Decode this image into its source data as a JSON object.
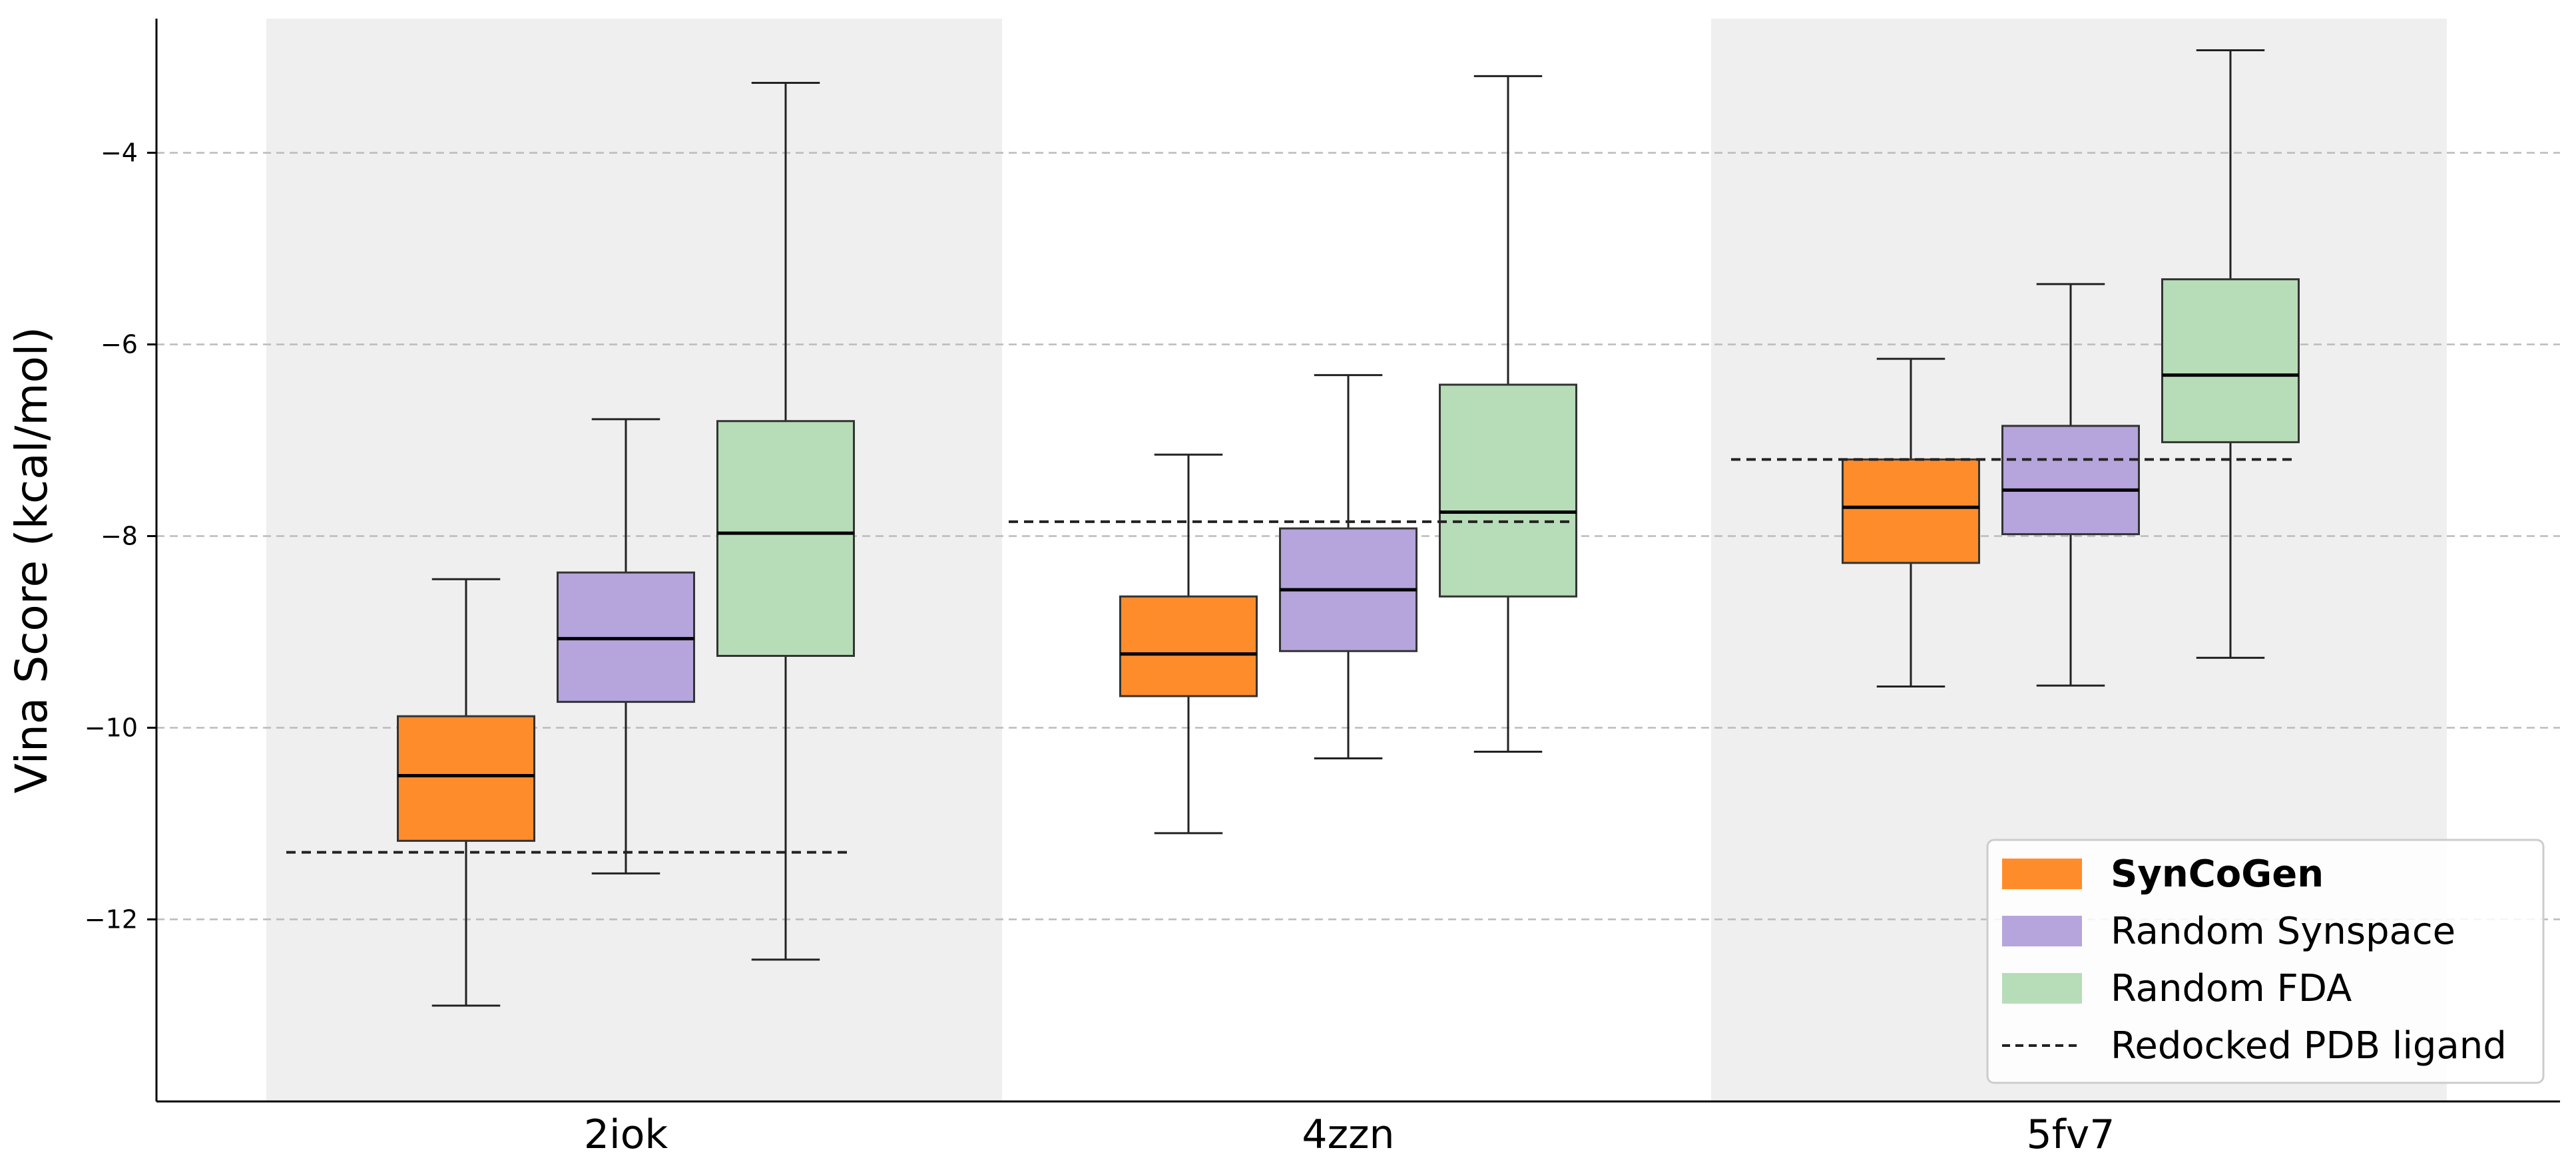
{
  "chart_data": {
    "type": "box",
    "title": "",
    "xlabel": "",
    "ylabel": "Vina Score (kcal/mol)",
    "ylim": [
      -13.9,
      -2.6
    ],
    "yticks": [
      -12,
      -10,
      -8,
      -6,
      -4
    ],
    "ytick_labels": [
      "−12",
      "−10",
      "−8",
      "−6",
      "−4"
    ],
    "grid": "horizontal dashed",
    "shaded_groups": [
      "2iok",
      "5fv7"
    ],
    "legend_position": "bottom-right",
    "categories": [
      "2iok",
      "4zzn",
      "5fv7"
    ],
    "series": [
      {
        "name": "SynCoGen",
        "bold": true,
        "color": "#ff8c2a",
        "boxes": [
          {
            "whislo": -12.9,
            "q1": -11.18,
            "med": -10.5,
            "q3": -9.88,
            "whishi": -8.45
          },
          {
            "whislo": -11.1,
            "q1": -9.67,
            "med": -9.23,
            "q3": -8.63,
            "whishi": -7.15
          },
          {
            "whislo": -9.57,
            "q1": -8.28,
            "med": -7.7,
            "q3": -7.2,
            "whishi": -6.15
          }
        ]
      },
      {
        "name": "Random Synspace",
        "bold": false,
        "color": "#b6a4dc",
        "boxes": [
          {
            "whislo": -11.52,
            "q1": -9.73,
            "med": -9.07,
            "q3": -8.38,
            "whishi": -6.78
          },
          {
            "whislo": -10.32,
            "q1": -9.2,
            "med": -8.56,
            "q3": -7.92,
            "whishi": -6.32
          },
          {
            "whislo": -9.56,
            "q1": -7.98,
            "med": -7.52,
            "q3": -6.85,
            "whishi": -5.37
          }
        ]
      },
      {
        "name": "Random FDA",
        "bold": false,
        "color": "#b7dcb8",
        "boxes": [
          {
            "whislo": -12.42,
            "q1": -9.25,
            "med": -7.97,
            "q3": -6.8,
            "whishi": -3.27
          },
          {
            "whislo": -10.25,
            "q1": -8.63,
            "med": -7.75,
            "q3": -6.42,
            "whishi": -3.2
          },
          {
            "whislo": -9.27,
            "q1": -7.02,
            "med": -6.32,
            "q3": -5.32,
            "whishi": -2.93
          }
        ]
      }
    ],
    "reference_line": {
      "name": "Redocked PDB ligand",
      "style": "dashed",
      "values": [
        -11.3,
        -7.85,
        -7.2
      ]
    }
  }
}
